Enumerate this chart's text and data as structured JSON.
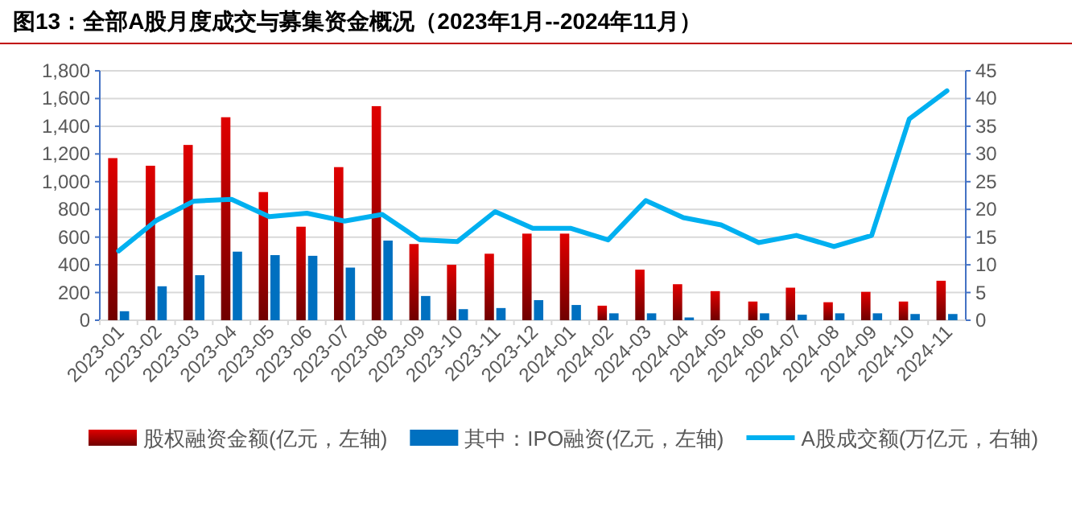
{
  "chart_data": {
    "type": "bar",
    "title": "图13：全部A股月度成交与募集资金概况（2023年1月--2024年11月）",
    "categories": [
      "2023-01",
      "2023-02",
      "2023-03",
      "2023-04",
      "2023-05",
      "2023-06",
      "2023-07",
      "2023-08",
      "2023-09",
      "2023-10",
      "2023-11",
      "2023-12",
      "2024-01",
      "2024-02",
      "2024-03",
      "2024-04",
      "2024-05",
      "2024-06",
      "2024-07",
      "2024-08",
      "2024-09",
      "2024-10",
      "2024-11"
    ],
    "series": [
      {
        "name": "股权融资金额(亿元，左轴)",
        "color": "#e00000",
        "values": [
          1170,
          1115,
          1265,
          1465,
          925,
          675,
          1105,
          1545,
          550,
          400,
          480,
          625,
          625,
          105,
          365,
          260,
          210,
          135,
          235,
          130,
          205,
          135,
          285
        ]
      },
      {
        "name": "其中：IPO融资(亿元，左轴)",
        "color": "#0070c0",
        "values": [
          65,
          245,
          325,
          495,
          470,
          465,
          380,
          575,
          175,
          80,
          88,
          145,
          110,
          50,
          50,
          20,
          0,
          50,
          40,
          50,
          50,
          45,
          45
        ]
      },
      {
        "name": "A股成交额(万亿元，右轴)",
        "color": "#00b0f0",
        "type": "line",
        "axis": "y2",
        "values": [
          12.5,
          18,
          21.5,
          21.8,
          18.7,
          19.3,
          17.9,
          19.1,
          14.5,
          14.2,
          19.6,
          16.6,
          16.6,
          14.5,
          21.6,
          18.5,
          17.2,
          14,
          15.3,
          13.3,
          15.3,
          36.3,
          41.4
        ]
      }
    ],
    "ylim": [
      0,
      1800
    ],
    "yticks": [
      0,
      200,
      400,
      600,
      800,
      {
        "value": 1000,
        "label": "1,000"
      },
      {
        "value": 1200,
        "label": "1,200"
      },
      {
        "value": 1400,
        "label": "1,400"
      },
      {
        "value": 1600,
        "label": "1,600"
      },
      {
        "value": 1800,
        "label": "1,800"
      }
    ],
    "y2lim": [
      0,
      45
    ],
    "y2ticks": [
      0,
      5,
      10,
      15,
      20,
      25,
      30,
      35,
      40,
      45
    ],
    "grid": "y",
    "legend": "bottom"
  }
}
